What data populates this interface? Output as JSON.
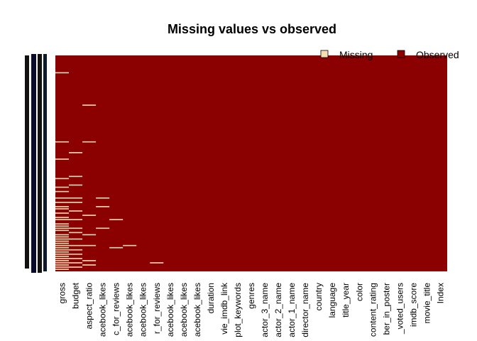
{
  "chart_data": {
    "type": "missmap",
    "title": "Missing values vs observed",
    "categories": [
      "gross",
      "budget",
      "aspect_ratio",
      "acebook_likes",
      "c_for_reviews",
      "acebook_likes",
      "acebook_likes",
      "r_for_reviews",
      "acebook_likes",
      "acebook_likes",
      "acebook_likes",
      "duration",
      "vie_imdb_link",
      "plot_keywords",
      "genres",
      "actor_3_name",
      "actor_2_name",
      "actor_1_name",
      "director_name",
      "country",
      "language",
      "title_year",
      "color",
      "content_rating",
      "ber_in_poster",
      "_voted_users",
      "imdb_score",
      "movie_title",
      "Index"
    ],
    "series": [
      {
        "name": "Missing",
        "color": "#f5deb3"
      },
      {
        "name": "Observed",
        "color": "#8b0000"
      }
    ],
    "ylim": [
      0,
      100
    ],
    "missing": [
      [
        8,
        40,
        48,
        57,
        61,
        63,
        66,
        68,
        70,
        71,
        73,
        75,
        76,
        78,
        79,
        80,
        81,
        83,
        84,
        85,
        86,
        87,
        88,
        89,
        90,
        91,
        92,
        93,
        94,
        95,
        96,
        97,
        98,
        99
      ],
      [
        45,
        56,
        60,
        66,
        68,
        72,
        76,
        80,
        82,
        85,
        88,
        90,
        92,
        94,
        96,
        98
      ],
      [
        23,
        40,
        74,
        83,
        88,
        95,
        97
      ],
      [
        66,
        70,
        80
      ],
      [
        76,
        89
      ],
      [
        88
      ],
      [],
      [
        96
      ],
      [],
      [],
      [],
      [],
      [],
      [],
      [],
      [],
      [],
      [],
      [],
      [],
      [],
      [],
      [],
      [],
      [],
      [],
      [],
      [],
      []
    ],
    "legend": "top-right"
  }
}
